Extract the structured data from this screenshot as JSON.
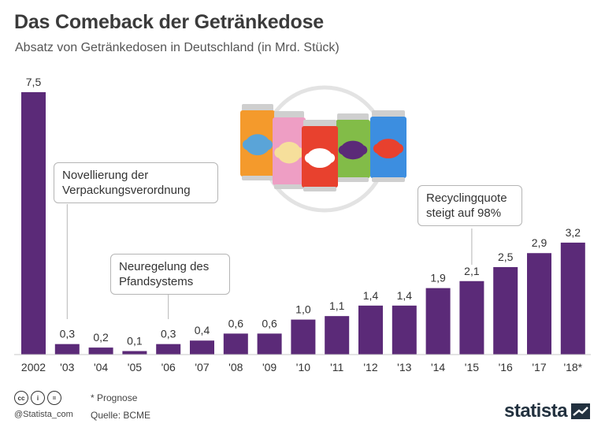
{
  "header": {
    "title": "Das Comeback der Getränkedose",
    "subtitle": "Absatz von Getränkedosen in Deutschland (in Mrd. Stück)"
  },
  "annotations": [
    {
      "text": "Novellierung der\nVerpackungsverordnung"
    },
    {
      "text": "Neuregelung des\nPfandsystems"
    },
    {
      "text": "Recyclingquote\nsteigt auf 98%"
    }
  ],
  "chart_data": {
    "type": "bar",
    "title": "Das Comeback der Getränkedose",
    "subtitle": "Absatz von Getränkedosen in Deutschland (in Mrd. Stück)",
    "categories": [
      "2002",
      "'03",
      "'04",
      "'05",
      "'06",
      "'07",
      "'08",
      "'09",
      "'10",
      "'11",
      "'12",
      "'13",
      "'14",
      "'15",
      "'16",
      "'17",
      "'18*"
    ],
    "values": [
      7.5,
      0.3,
      0.2,
      0.1,
      0.3,
      0.4,
      0.6,
      0.6,
      1.0,
      1.1,
      1.4,
      1.4,
      1.9,
      2.1,
      2.5,
      2.9,
      3.2
    ],
    "value_labels": [
      "7,5",
      "0,3",
      "0,2",
      "0,1",
      "0,3",
      "0,4",
      "0,6",
      "0,6",
      "1,0",
      "1,1",
      "1,4",
      "1,4",
      "1,9",
      "2,1",
      "2,5",
      "2,9",
      "3,2"
    ],
    "ylim": [
      0,
      7.5
    ],
    "xlabel": "",
    "ylabel": "",
    "bar_color": "#5b2a78"
  },
  "footer": {
    "cc_icons": [
      "cc",
      "i",
      "="
    ],
    "handle": "@Statista_com",
    "note": "* Prognose",
    "source": "Quelle: BCME",
    "logo": "statista"
  },
  "illustration": {
    "cans": [
      {
        "body": "#f49a2c",
        "label": "#5aa4d8"
      },
      {
        "body": "#ee9ec4",
        "label": "#f6df9b"
      },
      {
        "body": "#e8412e",
        "label": "#ffffff"
      },
      {
        "body": "#82bc48",
        "label": "#5b2a78"
      },
      {
        "body": "#3c8ee0",
        "label": "#e8412e"
      }
    ]
  }
}
